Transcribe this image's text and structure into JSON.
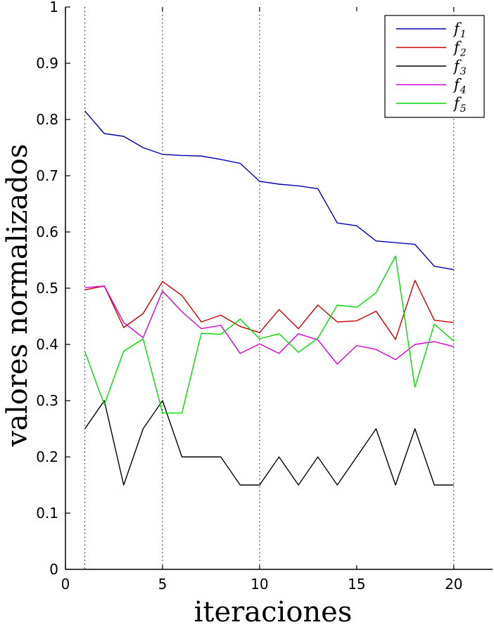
{
  "chart_data": {
    "type": "line",
    "xlabel": "iteraciones",
    "ylabel": "valores normalizados",
    "xlim": [
      0,
      22
    ],
    "ylim": [
      0,
      1
    ],
    "x_ticks": [
      0,
      5,
      10,
      15,
      20
    ],
    "x_tick_labels": [
      "0",
      "5",
      "10",
      "15",
      "20"
    ],
    "y_ticks": [
      0,
      0.1,
      0.2,
      0.3,
      0.4,
      0.5,
      0.6,
      0.7,
      0.8,
      0.9,
      1
    ],
    "y_tick_labels": [
      "0",
      "0.1",
      "0.2",
      "0.3",
      "0.4",
      "0.5",
      "0.6",
      "0.7",
      "0.8",
      "0.9",
      "1"
    ],
    "vertical_reference_lines": [
      1,
      5,
      10,
      20
    ],
    "grid": false,
    "legend_position": "top-right",
    "x": [
      1,
      2,
      3,
      4,
      5,
      6,
      7,
      8,
      9,
      10,
      11,
      12,
      13,
      14,
      15,
      16,
      17,
      18,
      19,
      20
    ],
    "series": [
      {
        "name": "f",
        "subscript": "1",
        "color": "#0000b4",
        "values": [
          0.815,
          0.775,
          0.77,
          0.75,
          0.738,
          0.736,
          0.735,
          0.729,
          0.722,
          0.69,
          0.685,
          0.682,
          0.677,
          0.616,
          0.611,
          0.584,
          0.581,
          0.578,
          0.539,
          0.533
        ]
      },
      {
        "name": "f",
        "subscript": "2",
        "color": "#c80000",
        "values": [
          0.497,
          0.504,
          0.43,
          0.455,
          0.512,
          0.487,
          0.44,
          0.452,
          0.432,
          0.421,
          0.462,
          0.428,
          0.47,
          0.44,
          0.442,
          0.459,
          0.409,
          0.514,
          0.443,
          0.439
        ]
      },
      {
        "name": "f",
        "subscript": "3",
        "color": "#000000",
        "values": [
          0.25,
          0.3,
          0.15,
          0.25,
          0.3,
          0.2,
          0.2,
          0.2,
          0.15,
          0.15,
          0.2,
          0.15,
          0.2,
          0.15,
          0.2,
          0.25,
          0.15,
          0.25,
          0.15,
          0.15
        ]
      },
      {
        "name": "f",
        "subscript": "4",
        "color": "#d200d2",
        "values": [
          0.501,
          0.504,
          0.439,
          0.412,
          0.495,
          0.458,
          0.428,
          0.434,
          0.384,
          0.401,
          0.384,
          0.419,
          0.408,
          0.365,
          0.398,
          0.391,
          0.373,
          0.4,
          0.405,
          0.396
        ]
      },
      {
        "name": "f",
        "subscript": "5",
        "color": "#00dc00",
        "values": [
          0.387,
          0.293,
          0.388,
          0.41,
          0.278,
          0.278,
          0.42,
          0.418,
          0.445,
          0.41,
          0.419,
          0.386,
          0.411,
          0.47,
          0.466,
          0.492,
          0.557,
          0.324,
          0.436,
          0.406
        ]
      }
    ]
  }
}
